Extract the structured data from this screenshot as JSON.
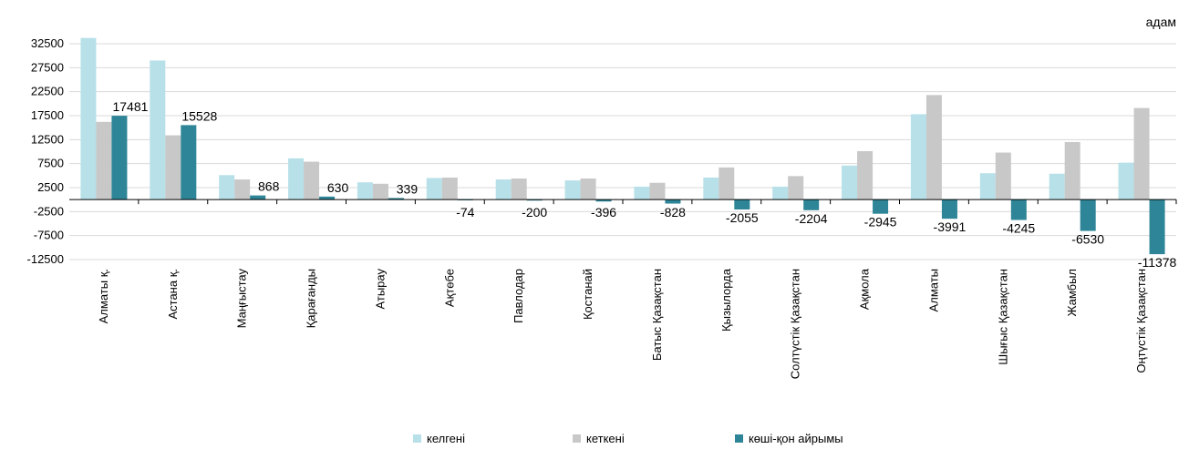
{
  "title": "",
  "unit_label": "адам",
  "colors": {
    "kelgeni": "#b7e0e8",
    "ketkeni": "#c8c8c8",
    "ayyrmasy": "#2e8597"
  },
  "legend": [
    {
      "key": "kelgeni",
      "label": "келгені"
    },
    {
      "key": "ketkeni",
      "label": "кеткені"
    },
    {
      "key": "ayyrmasy",
      "label": "көші-қон айрымы"
    }
  ],
  "chart_data": {
    "type": "bar",
    "categories": [
      "Алматы қ.",
      "Астана қ.",
      "Маңғыстау",
      "Қарағанды",
      "Атырау",
      "Ақтөбе",
      "Павлодар",
      "Қостанай",
      "Батыс Қазақстан",
      "Қызылорда",
      "Солтүстік Қазақстан",
      "Ақмола",
      "Алматы",
      "Шығыс Қазақстан",
      "Жамбыл",
      "Оңтүстік Қазақстан"
    ],
    "series": [
      {
        "name": "келгені",
        "values": [
          33700,
          29000,
          5100,
          8600,
          3600,
          4500,
          4200,
          4000,
          2700,
          4600,
          2700,
          7100,
          17800,
          5500,
          5400,
          7700
        ]
      },
      {
        "name": "кеткені",
        "values": [
          16200,
          13400,
          4200,
          7900,
          3300,
          4600,
          4400,
          4400,
          3500,
          6700,
          4900,
          10100,
          21800,
          9800,
          12000,
          19100
        ]
      },
      {
        "name": "көші-қон айрымы",
        "values": [
          17481,
          15528,
          868,
          630,
          339,
          -74,
          -200,
          -396,
          -828,
          -2055,
          -2204,
          -2945,
          -3991,
          -4245,
          -6530,
          -11378
        ]
      }
    ],
    "data_labels": [
      "17481",
      "15528",
      "868",
      "630",
      "339",
      "-74",
      "-200",
      "-396",
      "-828",
      "-2055",
      "-2204",
      "-2945",
      "-3991",
      "-4245",
      "-6530",
      "-11378"
    ],
    "ylim": [
      -12500,
      32500
    ],
    "yticks": [
      32500,
      27500,
      22500,
      17500,
      12500,
      7500,
      2500,
      -2500,
      -7500,
      -12500
    ],
    "grid": true,
    "legend_position": "bottom"
  }
}
